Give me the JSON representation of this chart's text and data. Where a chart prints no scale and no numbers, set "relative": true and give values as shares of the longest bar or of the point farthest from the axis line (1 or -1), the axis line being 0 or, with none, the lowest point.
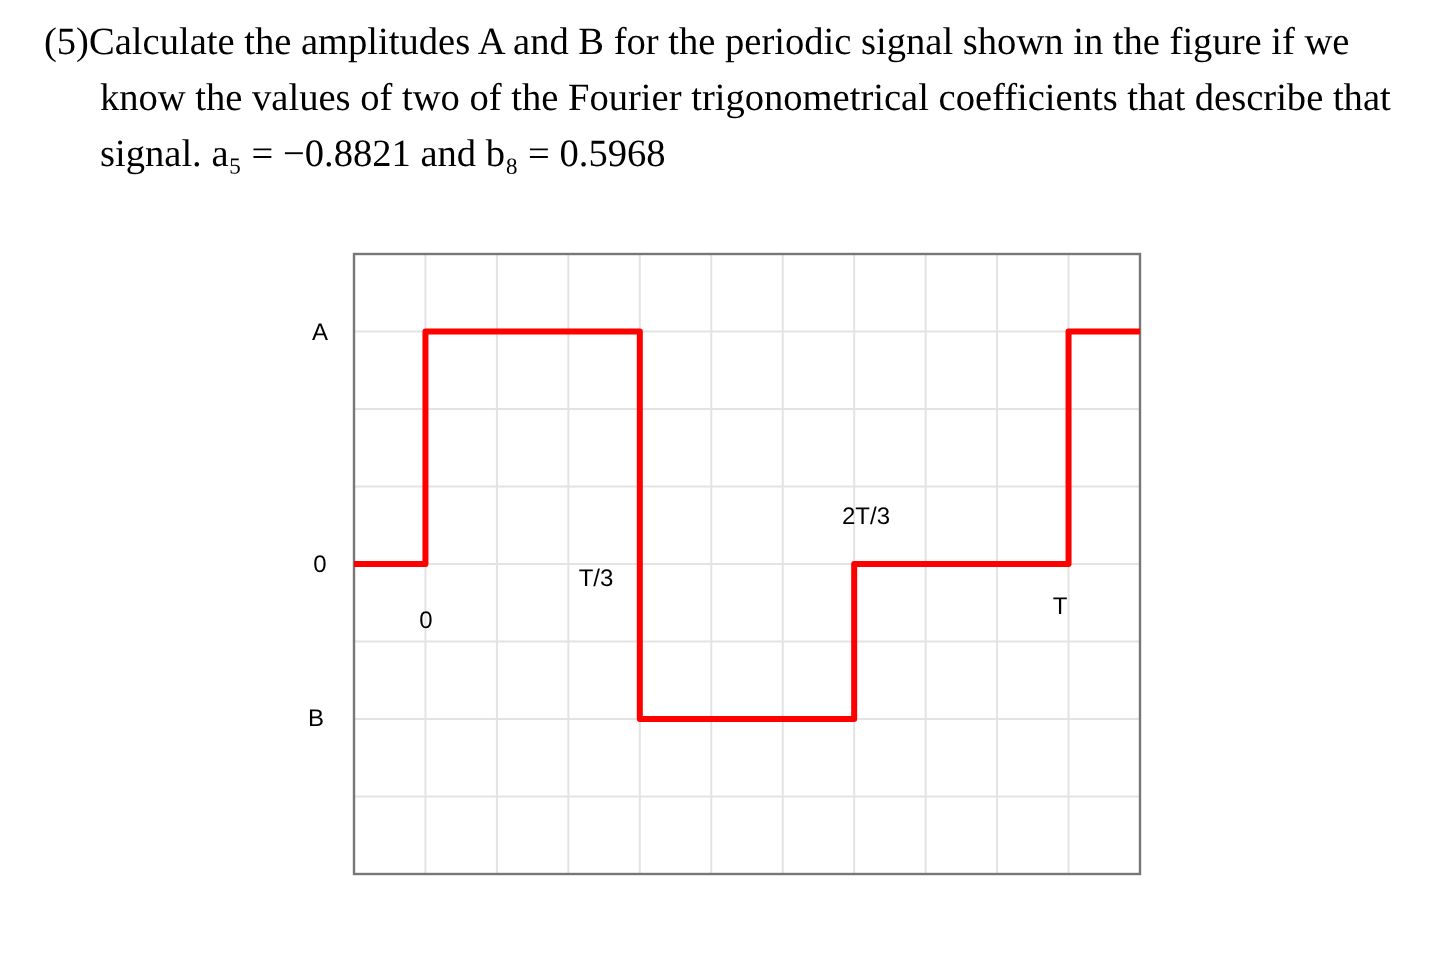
{
  "chart_data": {
    "type": "step",
    "title": "(5)Calculate the amplitudes A and B for the periodic signal shown in the figure if we know the values of two of the Fourier trigonometrical coefficients that describe that signal. a₅ = −0.8821 and b₈ = 0.5968",
    "relative": true,
    "categories": [
      null,
      null,
      null,
      null,
      null,
      null,
      null,
      null,
      null,
      null,
      null,
      null
    ],
    "series": [
      {
        "color": "#ff0000",
        "values": [
          0,
          1,
          1,
          1,
          -0.667,
          -0.667,
          -0.667,
          0,
          0,
          0,
          1,
          1
        ]
      }
    ],
    "grid": true,
    "annotations": [
      "A",
      "0",
      "B",
      "0",
      "T/3",
      "2T/3",
      "T"
    ]
  }
}
